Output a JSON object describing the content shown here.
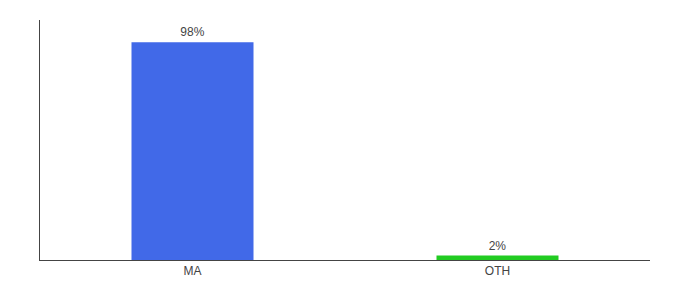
{
  "chart_data": {
    "type": "bar",
    "categories": [
      "MA",
      "OTH"
    ],
    "values": [
      98,
      2
    ],
    "value_labels": [
      "98%",
      "2%"
    ],
    "colors": [
      "#4169e8",
      "#22cc22"
    ],
    "ylim": [
      0,
      108
    ],
    "grid": false,
    "data_labels": true,
    "tick_labels": "x"
  }
}
